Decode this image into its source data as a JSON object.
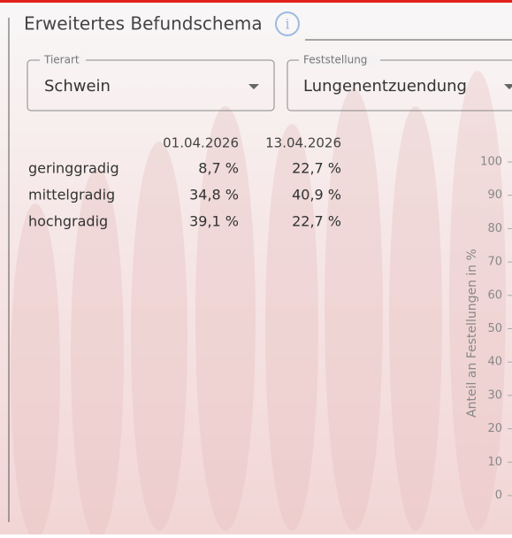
{
  "header": {
    "title": "Erweitertes Befundschema",
    "info_icon": "i"
  },
  "filters": [
    {
      "label": "Tierart",
      "value": "Schwein"
    },
    {
      "label": "Feststellung",
      "value": "Lungenentzuendung"
    }
  ],
  "table": {
    "columns": [
      "01.04.2026",
      "13.04.2026"
    ],
    "rows": [
      [
        "geringgradig",
        "8,7 %",
        "22,7 %"
      ],
      [
        "mittelgradig",
        "34,8 %",
        "40,9 %"
      ],
      [
        "hochgradig",
        "39,1 %",
        "22,7 %"
      ]
    ]
  },
  "chart_axis": {
    "label": "Anteil an Festellungen in %",
    "yticks": [
      100,
      90,
      80,
      70,
      60,
      50,
      40,
      30,
      20,
      10,
      0
    ]
  }
}
